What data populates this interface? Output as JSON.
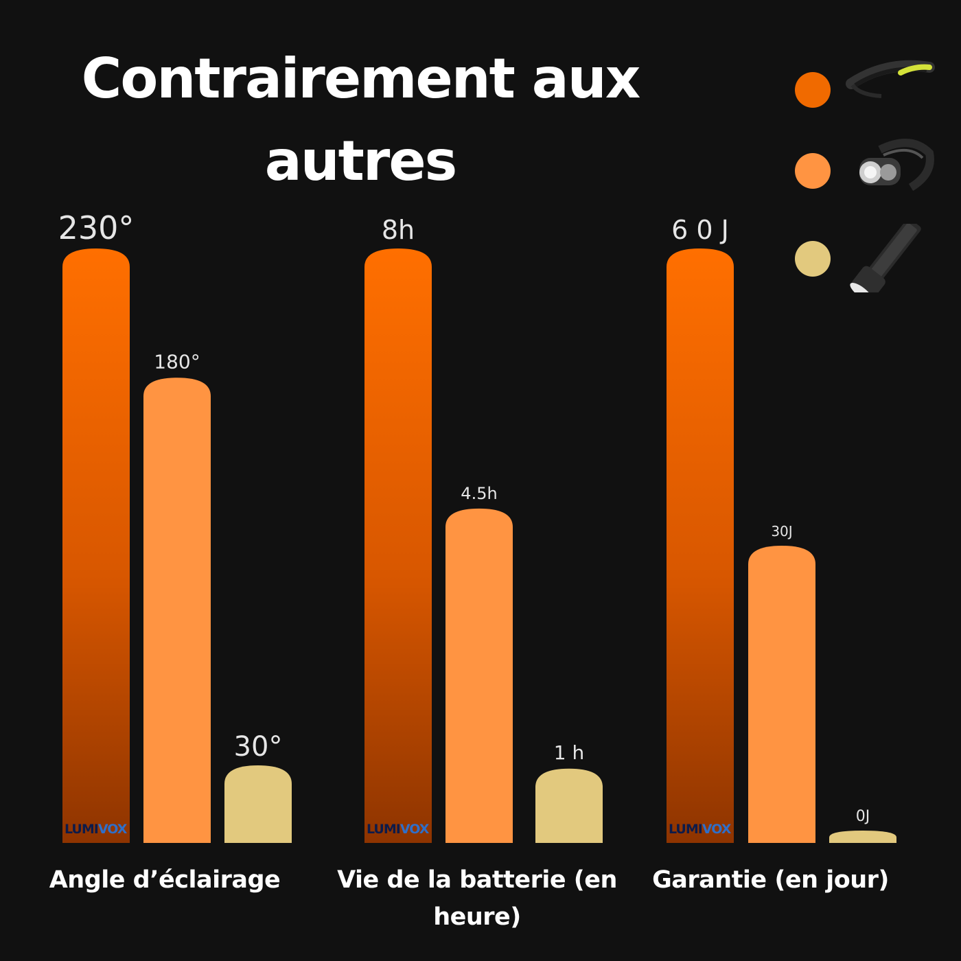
{
  "chart_data": {
    "type": "bar",
    "title": "Contrairement aux autres",
    "categories": [
      "Angle d’éclairage",
      "Vie de la batterie (en heure)",
      "Garantie (en jour)"
    ],
    "series": [
      {
        "values": [
          230,
          8,
          60
        ],
        "labels": [
          "230°",
          "8h",
          "6 0 J"
        ],
        "color": "#f06a00"
      },
      {
        "values": [
          180,
          4.5,
          30
        ],
        "labels": [
          "180°",
          "4.5h",
          "30J"
        ],
        "color": "#ff9442"
      },
      {
        "values": [
          30,
          1,
          0
        ],
        "labels": [
          "30°",
          "1 h",
          "0J"
        ],
        "color": "#e2c97e"
      }
    ],
    "legend_icons": [
      "led-strip-headlamp-icon",
      "headlamp-icon",
      "flashlight-icon"
    ],
    "legend_placement": "top-right",
    "grid": false
  },
  "brand": {
    "part1": "LUMI",
    "part2": "VOX"
  },
  "colors": {
    "background": "#111111",
    "brand_primary": "#f06a00",
    "brand_part1": "#0d1b4a",
    "brand_part2": "#2f6fc9"
  }
}
